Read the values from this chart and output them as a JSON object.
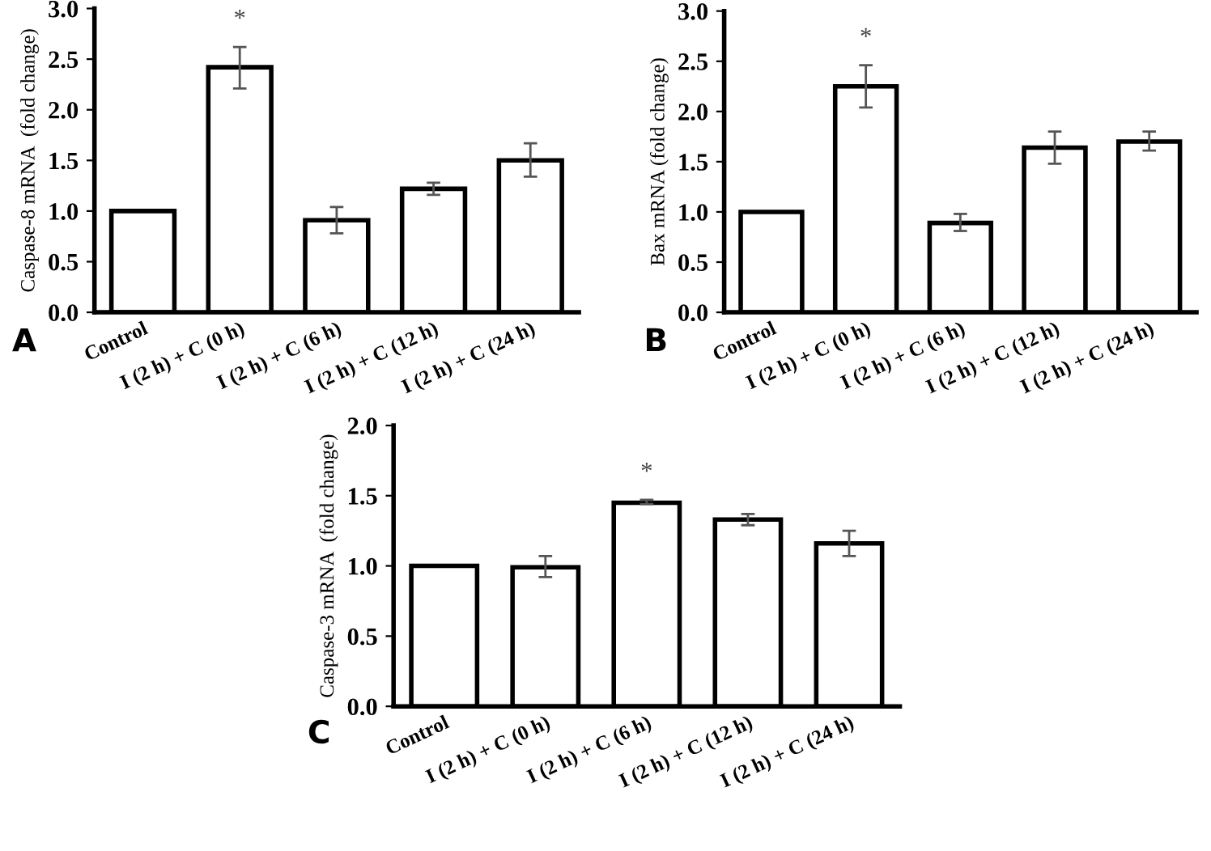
{
  "chart_data": [
    {
      "type": "bar",
      "title": "A",
      "ylabel": "Caspase-8 mRNA  (fold change)",
      "categories": [
        "Control",
        "I (2 h) + C (0 h)",
        "I (2 h) + C (6 h)",
        "I (2 h) + C (12 h)",
        "I (2 h) + C (24 h)"
      ],
      "values": [
        1.0,
        2.42,
        0.91,
        1.22,
        1.5
      ],
      "errors": [
        null,
        [
          2.21,
          2.62
        ],
        [
          0.78,
          1.04
        ],
        [
          1.16,
          1.28
        ],
        [
          1.34,
          1.67
        ]
      ],
      "color": "#ffffff",
      "ylim": [
        0,
        3.0
      ],
      "yticks": [
        {
          "value": 0,
          "label": "0.0"
        },
        {
          "value": 0.5,
          "label": "0.5"
        },
        {
          "value": 1,
          "label": "1.0"
        },
        {
          "value": 1.5,
          "label": "1.5"
        },
        {
          "value": 2,
          "label": "2.0"
        },
        {
          "value": 2.5,
          "label": "2.5"
        },
        {
          "value": 3,
          "label": "3.0"
        }
      ],
      "grid": false,
      "annotations": [
        "*"
      ]
    },
    {
      "type": "bar",
      "title": "B",
      "ylabel": "Bax mRNA (fold change)",
      "categories": [
        "Control",
        "I (2 h) + C (0 h)",
        "I (2 h) + C (6 h)",
        "I (2 h) + C (12 h)",
        "I (2 h) + C (24 h)"
      ],
      "values": [
        1.0,
        2.25,
        0.89,
        1.64,
        1.7
      ],
      "errors": [
        null,
        [
          2.04,
          2.46
        ],
        [
          0.81,
          0.98
        ],
        [
          1.48,
          1.8
        ],
        [
          1.61,
          1.8
        ]
      ],
      "color": "#ffffff",
      "ylim": [
        0,
        3.0
      ],
      "yticks": [
        {
          "value": 0,
          "label": "0.0"
        },
        {
          "value": 0.5,
          "label": "0.5"
        },
        {
          "value": 1,
          "label": "1.0"
        },
        {
          "value": 1.5,
          "label": "1.5"
        },
        {
          "value": 2,
          "label": "2.0"
        },
        {
          "value": 2.5,
          "label": "2.5"
        },
        {
          "value": 3,
          "label": "3.0"
        }
      ],
      "grid": false,
      "annotations": [
        "*"
      ]
    },
    {
      "type": "bar",
      "title": "C",
      "ylabel": "Caspase-3 mRNA  (fold change)",
      "categories": [
        "Control",
        "I (2 h) + C (0 h)",
        "I (2 h) + C (6 h)",
        "I (2 h) + C (12 h)",
        "I (2 h) + C (24 h)"
      ],
      "values": [
        1.0,
        0.99,
        1.45,
        1.33,
        1.16
      ],
      "errors": [
        null,
        [
          0.92,
          1.07
        ],
        [
          1.44,
          1.47
        ],
        [
          1.29,
          1.37
        ],
        [
          1.07,
          1.25
        ]
      ],
      "color": "#ffffff",
      "ylim": [
        0,
        2.0
      ],
      "yticks": [
        {
          "value": 0,
          "label": "0.0"
        },
        {
          "value": 0.5,
          "label": "0.5"
        },
        {
          "value": 1,
          "label": "1.0"
        },
        {
          "value": 1.5,
          "label": "1.5"
        },
        {
          "value": 2,
          "label": "2.0"
        }
      ],
      "grid": false,
      "annotations": [
        "*"
      ]
    }
  ]
}
